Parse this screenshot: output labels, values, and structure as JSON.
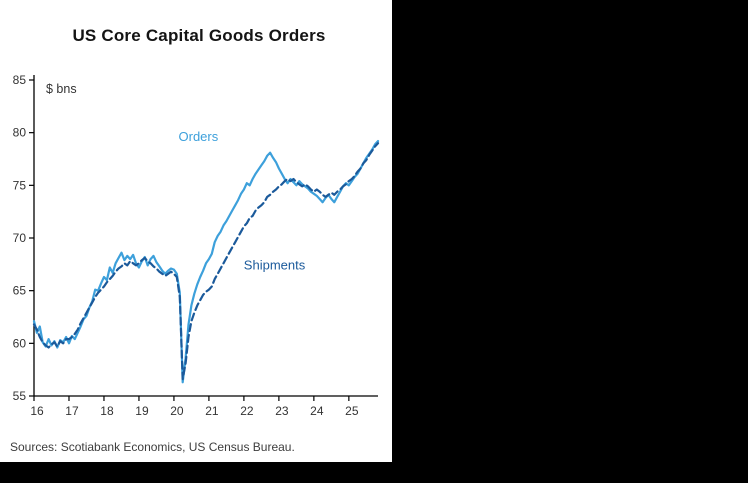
{
  "window": {
    "background": "#000000",
    "panel_background": "#ffffff"
  },
  "chart_data": {
    "type": "line",
    "title": "US Core Capital Goods Orders",
    "unit_label": "$ bns",
    "source_note": "Sources: Scotiabank Economics, US Census Bureau.",
    "xlabel": "",
    "ylabel": "$ bns",
    "ylim": [
      55,
      85
    ],
    "yticks": [
      55,
      60,
      65,
      70,
      75,
      80,
      85
    ],
    "xticks": [
      "16",
      "17",
      "18",
      "19",
      "20",
      "21",
      "22",
      "23",
      "24",
      "25"
    ],
    "x_frequency": "monthly",
    "x_range": "Jan 2016 - Nov 2025",
    "grid": false,
    "legend_position": "inline-annotations",
    "series": [
      {
        "name": "Orders",
        "color": "#3DA0DB",
        "style": "solid",
        "values": [
          62.1,
          61.0,
          61.6,
          60.1,
          59.7,
          60.4,
          59.8,
          60.2,
          59.6,
          60.3,
          60.1,
          60.6,
          60.0,
          60.7,
          60.4,
          61.0,
          61.6,
          62.3,
          62.6,
          63.4,
          64.0,
          65.1,
          65.0,
          65.7,
          66.3,
          66.0,
          67.2,
          66.7,
          67.6,
          68.1,
          68.6,
          67.9,
          68.3,
          68.0,
          68.4,
          67.6,
          67.2,
          67.8,
          68.2,
          67.4,
          68.0,
          68.3,
          67.7,
          67.3,
          66.9,
          66.6,
          66.9,
          67.1,
          67.0,
          66.6,
          64.8,
          56.3,
          58.6,
          61.8,
          63.6,
          64.7,
          65.6,
          66.3,
          66.9,
          67.6,
          68.0,
          68.5,
          69.6,
          70.2,
          70.6,
          71.2,
          71.6,
          72.1,
          72.6,
          73.1,
          73.6,
          74.2,
          74.6,
          75.2,
          75.0,
          75.6,
          76.1,
          76.5,
          76.9,
          77.3,
          77.8,
          78.1,
          77.6,
          77.2,
          76.6,
          76.1,
          75.6,
          75.2,
          75.6,
          75.3,
          75.0,
          75.4,
          75.1,
          74.9,
          74.7,
          74.4,
          74.2,
          74.0,
          73.7,
          73.4,
          73.8,
          74.1,
          73.7,
          73.4,
          73.9,
          74.4,
          74.9,
          75.2,
          75.0,
          75.4,
          75.8,
          76.1,
          76.6,
          77.1,
          77.6,
          78.0,
          78.4,
          78.9,
          79.2
        ]
      },
      {
        "name": "Shipments",
        "color": "#1B5A9B",
        "style": "dashed",
        "values": [
          61.8,
          61.3,
          60.6,
          60.1,
          59.8,
          59.6,
          59.9,
          60.1,
          59.7,
          60.2,
          60.0,
          60.4,
          60.4,
          60.6,
          60.9,
          61.3,
          61.9,
          62.4,
          62.9,
          63.4,
          63.9,
          64.4,
          64.8,
          65.1,
          65.4,
          65.8,
          66.1,
          66.4,
          66.8,
          67.1,
          67.3,
          67.6,
          67.4,
          67.8,
          67.6,
          67.4,
          67.6,
          67.9,
          68.1,
          67.8,
          67.6,
          67.3,
          67.1,
          66.8,
          66.6,
          66.4,
          66.6,
          66.8,
          66.6,
          66.3,
          64.4,
          56.6,
          58.1,
          60.6,
          62.1,
          62.9,
          63.6,
          64.1,
          64.6,
          64.9,
          65.1,
          65.4,
          66.1,
          66.6,
          67.1,
          67.6,
          68.1,
          68.6,
          69.1,
          69.6,
          70.1,
          70.6,
          71.1,
          71.4,
          71.9,
          72.1,
          72.6,
          72.9,
          73.1,
          73.4,
          73.9,
          74.1,
          74.4,
          74.6,
          74.9,
          75.1,
          75.4,
          75.6,
          75.4,
          75.6,
          75.3,
          75.1,
          74.9,
          75.1,
          74.9,
          74.6,
          74.4,
          74.6,
          74.4,
          74.1,
          73.9,
          74.1,
          74.3,
          74.1,
          74.4,
          74.6,
          74.9,
          75.1,
          75.4,
          75.6,
          75.9,
          76.3,
          76.6,
          77.1,
          77.4,
          77.9,
          78.3,
          78.7,
          79.0
        ]
      }
    ],
    "annotations": [
      {
        "text": "Orders",
        "color": "#3DA0DB",
        "xfrac": 0.42,
        "yval": 79.2
      },
      {
        "text": "Shipments",
        "color": "#1B5A9B",
        "xfrac": 0.61,
        "yval": 67.0
      }
    ]
  }
}
